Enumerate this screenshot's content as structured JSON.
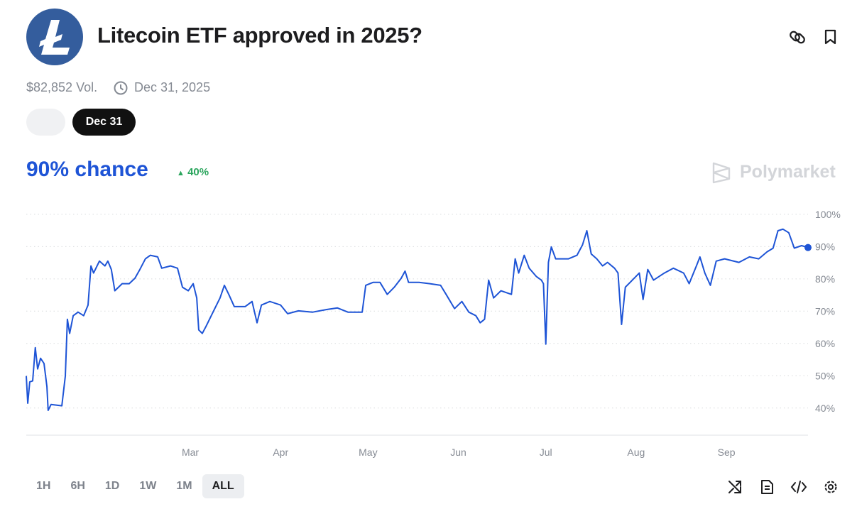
{
  "header": {
    "title": "Litecoin ETF approved in 2025?",
    "volume": "$82,852 Vol.",
    "end_date": "Dec 31, 2025"
  },
  "date_tabs": [
    "Dec 31"
  ],
  "headline": {
    "chance": "90% chance",
    "change": "40%"
  },
  "brand": "Polymarket",
  "range_buttons": [
    "1H",
    "6H",
    "1D",
    "1W",
    "1M",
    "ALL"
  ],
  "selected_range": "ALL",
  "chart_data": {
    "type": "line",
    "color": "#1e54d6",
    "grid": true,
    "x": [
      3.7,
      4.2,
      4.9,
      5.9,
      6.8,
      7.6,
      8.6,
      9.8,
      10.8,
      11.2,
      12.2,
      15.9,
      17.1,
      17.8,
      18.6,
      19.8,
      21.5,
      23.4,
      24.9,
      25.9,
      26.8,
      28.8,
      30.7,
      31.7,
      32.9,
      34.1,
      36.6,
      39.0,
      41.0,
      42.7,
      44.6,
      46.3,
      48.8,
      50.2,
      53.2,
      55.6,
      57.3,
      59.3,
      61.0,
      62.2,
      62.9,
      64.1,
      65.4,
      67.8,
      70.2,
      71.7,
      73.2,
      75.1,
      78.8,
      81.2,
      82.9,
      84.4,
      87.3,
      91.0,
      93.4,
      97.1,
      102.0,
      106.8,
      110.5,
      114.1,
      119.0,
      120.2,
      122.7,
      125.1,
      127.6,
      130.0,
      132.4,
      133.7,
      134.9,
      138.5,
      142.2,
      145.9,
      147.8,
      150.7,
      153.2,
      155.6,
      158.0,
      159.5,
      161.0,
      162.4,
      164.1,
      166.6,
      170.2,
      171.5,
      172.7,
      174.6,
      176.3,
      178.8,
      180.5,
      181.2,
      182.0,
      182.9,
      183.9,
      185.4,
      189.8,
      192.7,
      194.6,
      196.1,
      197.6,
      199.5,
      201.5,
      203.2,
      205.6,
      206.8,
      208.0,
      209.3,
      211.7,
      214.1,
      215.4,
      217.0,
      219.0,
      222.7,
      225.8,
      229.3,
      231.2,
      233.7,
      234.9,
      236.6,
      238.5,
      240.5,
      243.4,
      248.3,
      251.9,
      255.1,
      258.0,
      260.0,
      261.7,
      263.4,
      265.4,
      267.3,
      269.8,
      272.0
    ],
    "values": [
      49.9,
      41.5,
      48.1,
      48.4,
      58.7,
      52.1,
      55.4,
      53.8,
      46.6,
      39.3,
      41.1,
      40.7,
      49.9,
      67.5,
      63.1,
      68.6,
      69.7,
      68.6,
      71.9,
      84.0,
      81.8,
      85.5,
      84.0,
      85.5,
      82.9,
      76.3,
      78.5,
      78.5,
      80.2,
      82.9,
      86.2,
      87.3,
      86.8,
      83.3,
      84.0,
      83.3,
      77.4,
      76.3,
      78.5,
      74.1,
      64.2,
      63.1,
      65.3,
      69.7,
      74.1,
      78.0,
      75.2,
      71.4,
      71.4,
      73.0,
      66.4,
      71.9,
      73.0,
      71.9,
      69.2,
      70.1,
      69.7,
      70.5,
      71.0,
      69.7,
      69.7,
      78.0,
      78.9,
      78.9,
      75.2,
      77.4,
      80.2,
      82.4,
      78.9,
      78.9,
      78.5,
      78.0,
      75.2,
      70.8,
      73.0,
      69.7,
      68.6,
      66.4,
      67.5,
      79.6,
      74.1,
      76.3,
      75.2,
      86.2,
      81.8,
      87.3,
      83.3,
      80.7,
      79.6,
      78.5,
      59.8,
      85.1,
      89.9,
      86.2,
      86.2,
      87.3,
      90.5,
      94.9,
      87.7,
      86.2,
      84.0,
      85.1,
      83.3,
      81.8,
      65.9,
      77.4,
      79.6,
      81.8,
      73.6,
      82.9,
      79.6,
      81.8,
      83.3,
      81.8,
      78.5,
      84.0,
      86.8,
      81.8,
      78.0,
      85.5,
      86.2,
      85.1,
      86.8,
      86.2,
      88.4,
      89.5,
      94.9,
      95.4,
      94.3,
      89.5,
      90.3,
      89.7
    ],
    "xlim": [
      3.7,
      272
    ],
    "xticks": [
      {
        "value": 60,
        "label": "Mar"
      },
      {
        "value": 91,
        "label": "Apr"
      },
      {
        "value": 121,
        "label": "May"
      },
      {
        "value": 152,
        "label": "Jun"
      },
      {
        "value": 182,
        "label": "Jul"
      },
      {
        "value": 213,
        "label": "Aug"
      },
      {
        "value": 244,
        "label": "Sep"
      }
    ],
    "ylim": [
      31.6,
      102.6
    ],
    "yticks": [
      {
        "value": 40,
        "label": "40%"
      },
      {
        "value": 50,
        "label": "50%"
      },
      {
        "value": 60,
        "label": "60%"
      },
      {
        "value": 70,
        "label": "70%"
      },
      {
        "value": 80,
        "label": "80%"
      },
      {
        "value": 90,
        "label": "90%"
      },
      {
        "value": 100,
        "label": "100%"
      }
    ]
  }
}
